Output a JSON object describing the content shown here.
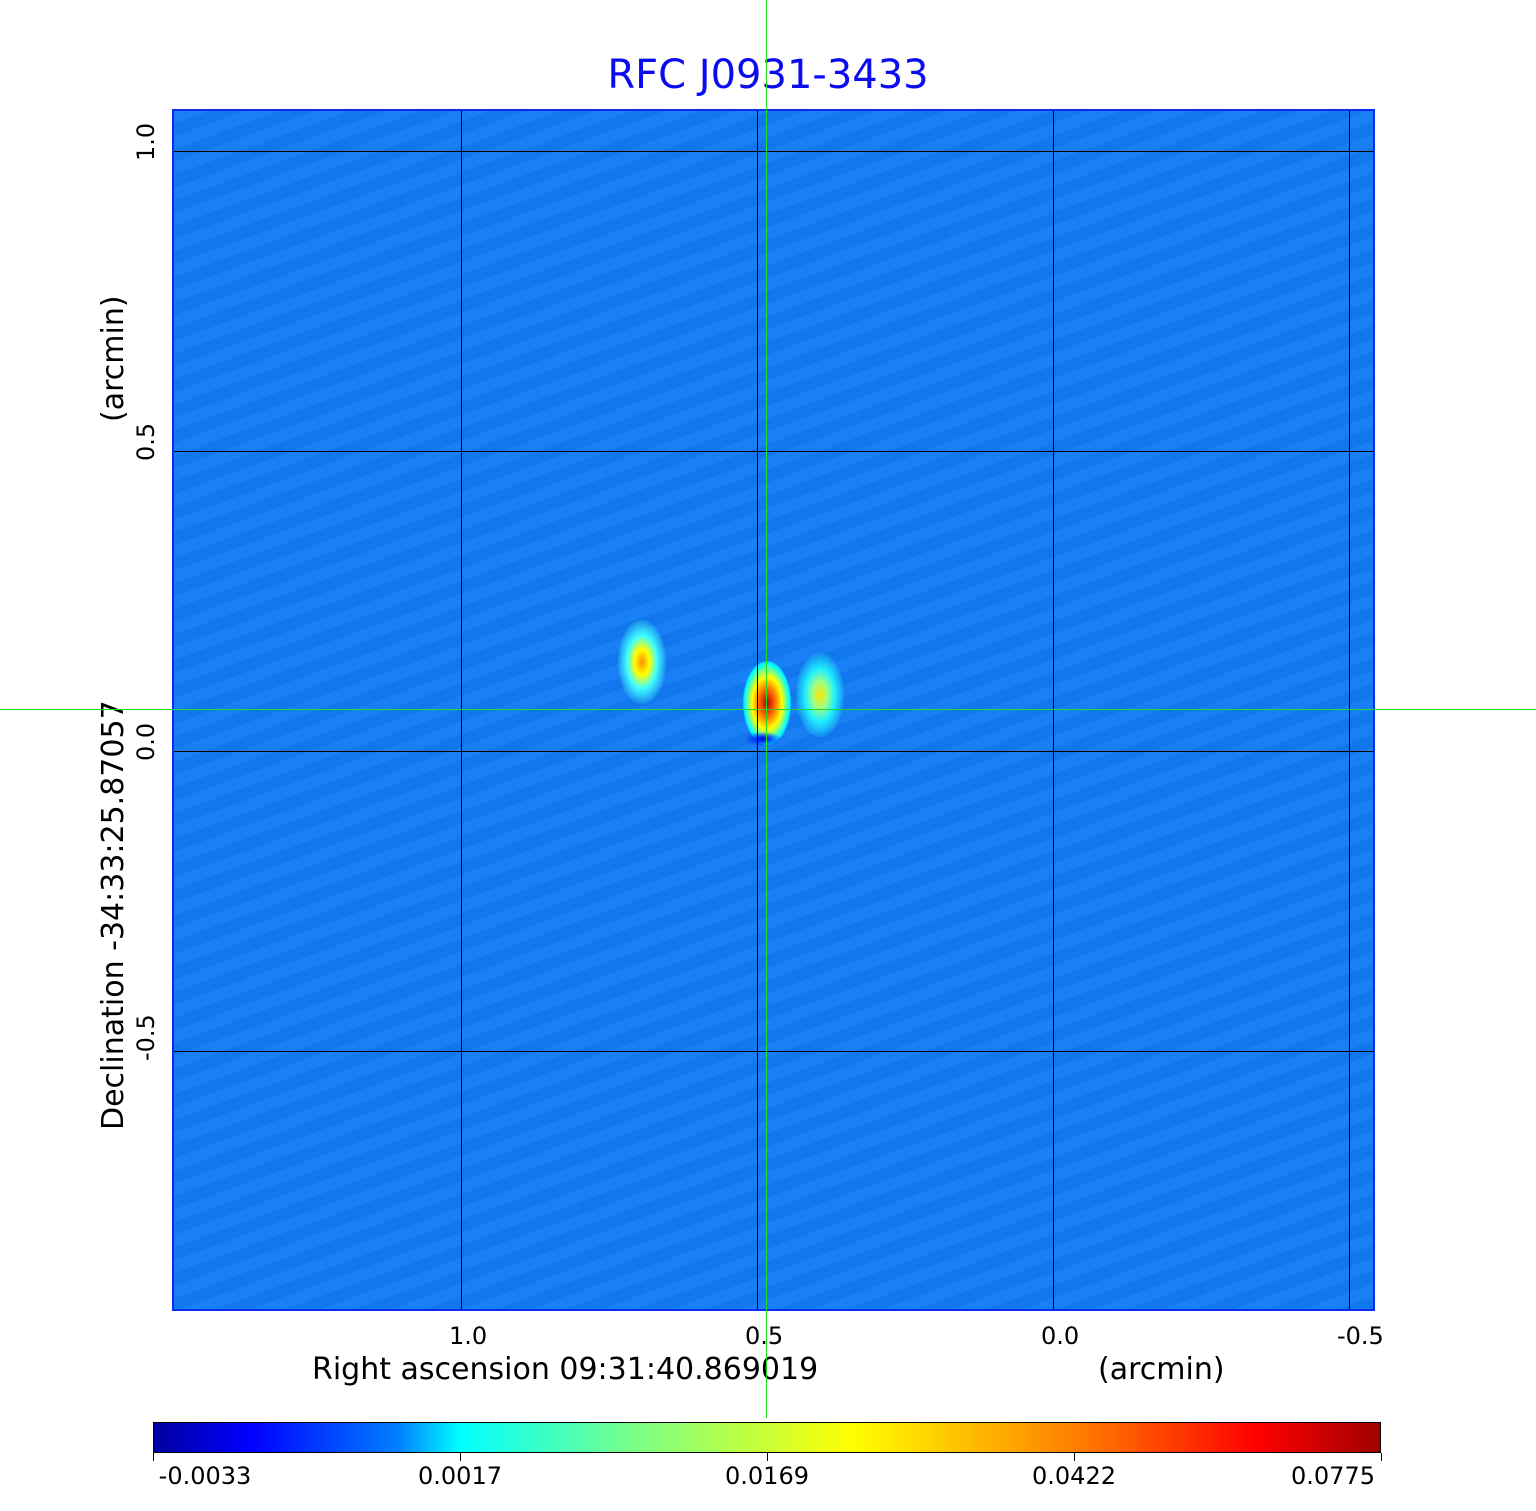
{
  "chart_data": {
    "type": "heatmap",
    "title": "RFC J0931-3433",
    "xlabel": "Right ascension  09:31:40.869019",
    "xunit": "(arcmin)",
    "ylabel": "Declination  -34:33:25.87057",
    "yunit": "(arcmin)",
    "xticks": [
      "1.0",
      "0.5",
      "0.0",
      "-0.5"
    ],
    "xtick_values": [
      1.0,
      0.5,
      0.0,
      -0.5
    ],
    "yticks": [
      "1.0",
      "0.5",
      "0.0",
      "-0.5"
    ],
    "ytick_values": [
      1.0,
      0.5,
      0.0,
      -0.5
    ],
    "xlim": [
      1.485,
      -0.547
    ],
    "ylim": [
      -0.937,
      1.067
    ],
    "grid": true,
    "crosshair": {
      "ra": 0.48,
      "dec": 0.066
    },
    "colorbar": {
      "ticks": [
        "-0.0033",
        "0.0017",
        "0.0169",
        "0.0422",
        "0.0775"
      ],
      "colormap": "jet"
    },
    "sources": [
      {
        "ra": 0.694,
        "dec": 0.148,
        "peak": 0.045
      },
      {
        "ra": 0.483,
        "dec": 0.08,
        "peak": 0.0775
      },
      {
        "ra": 0.394,
        "dec": 0.093,
        "peak": 0.03
      },
      {
        "ra": 0.49,
        "dec": 0.02,
        "peak": -0.0033
      }
    ]
  }
}
